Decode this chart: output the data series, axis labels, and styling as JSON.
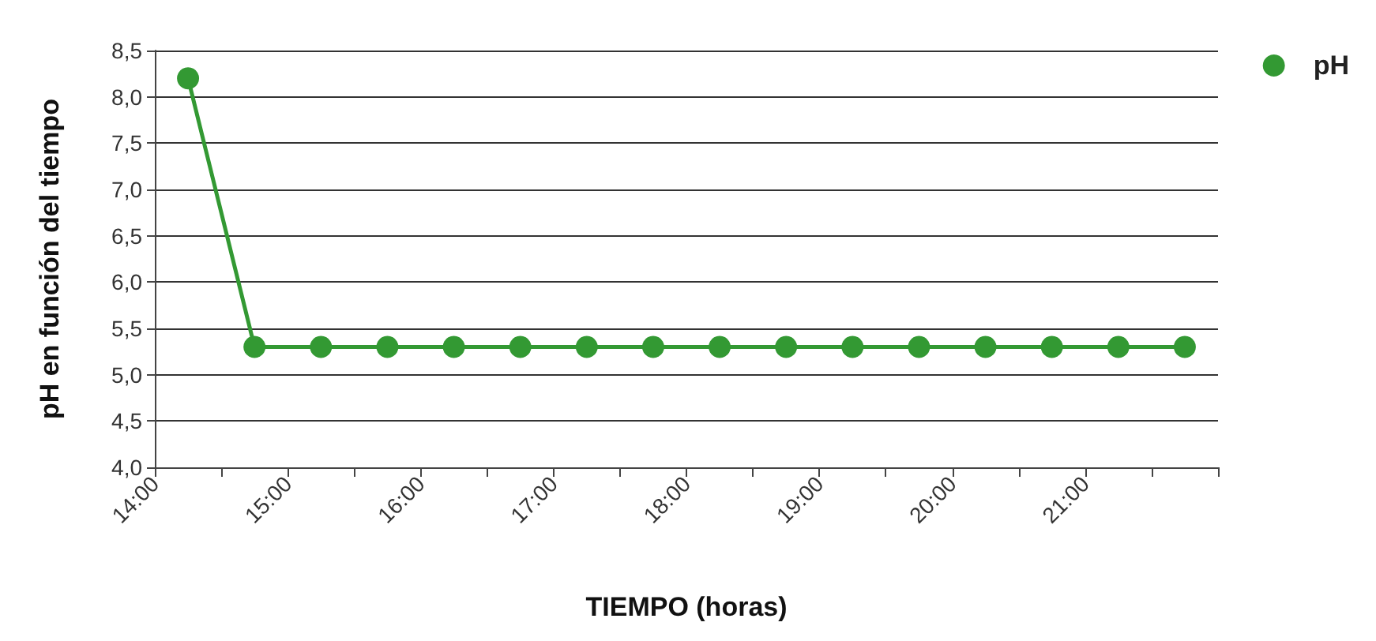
{
  "chart_data": {
    "type": "line",
    "xlabel": "TIEMPO (horas)",
    "ylabel": "pH en función del tiempo",
    "x": [
      14.25,
      14.75,
      15.25,
      15.75,
      16.25,
      16.75,
      17.25,
      17.75,
      18.25,
      18.75,
      19.25,
      19.75,
      20.25,
      20.75,
      21.25,
      21.75
    ],
    "series": [
      {
        "name": "pH",
        "color": "#339933",
        "values": [
          8.2,
          5.3,
          5.3,
          5.3,
          5.3,
          5.3,
          5.3,
          5.3,
          5.3,
          5.3,
          5.3,
          5.3,
          5.3,
          5.3,
          5.3,
          5.3
        ]
      }
    ],
    "xlim": [
      14,
      22
    ],
    "xticks": [
      {
        "value": 14,
        "label": "14:00"
      },
      {
        "value": 14.5,
        "label": null
      },
      {
        "value": 15,
        "label": "15:00"
      },
      {
        "value": 15.5,
        "label": null
      },
      {
        "value": 16,
        "label": "16:00"
      },
      {
        "value": 16.5,
        "label": null
      },
      {
        "value": 17,
        "label": "17:00"
      },
      {
        "value": 17.5,
        "label": null
      },
      {
        "value": 18,
        "label": "18:00"
      },
      {
        "value": 18.5,
        "label": null
      },
      {
        "value": 19,
        "label": "19:00"
      },
      {
        "value": 19.5,
        "label": null
      },
      {
        "value": 20,
        "label": "20:00"
      },
      {
        "value": 20.5,
        "label": null
      },
      {
        "value": 21,
        "label": "21:00"
      },
      {
        "value": 21.5,
        "label": null
      },
      {
        "value": 22,
        "label": null
      }
    ],
    "ylim": [
      4.0,
      8.5
    ],
    "yticks": [
      {
        "value": 4.0,
        "label": "4,0"
      },
      {
        "value": 4.5,
        "label": "4,5"
      },
      {
        "value": 5.0,
        "label": "5,0"
      },
      {
        "value": 5.5,
        "label": "5,5"
      },
      {
        "value": 6.0,
        "label": "6,0"
      },
      {
        "value": 6.5,
        "label": "6,5"
      },
      {
        "value": 7.0,
        "label": "7,0"
      },
      {
        "value": 7.5,
        "label": "7,5"
      },
      {
        "value": 8.0,
        "label": "8,0"
      },
      {
        "value": 8.5,
        "label": "8,5"
      }
    ],
    "grid": "y",
    "legend": "top right",
    "marker": "circle",
    "line_style": "solid"
  }
}
